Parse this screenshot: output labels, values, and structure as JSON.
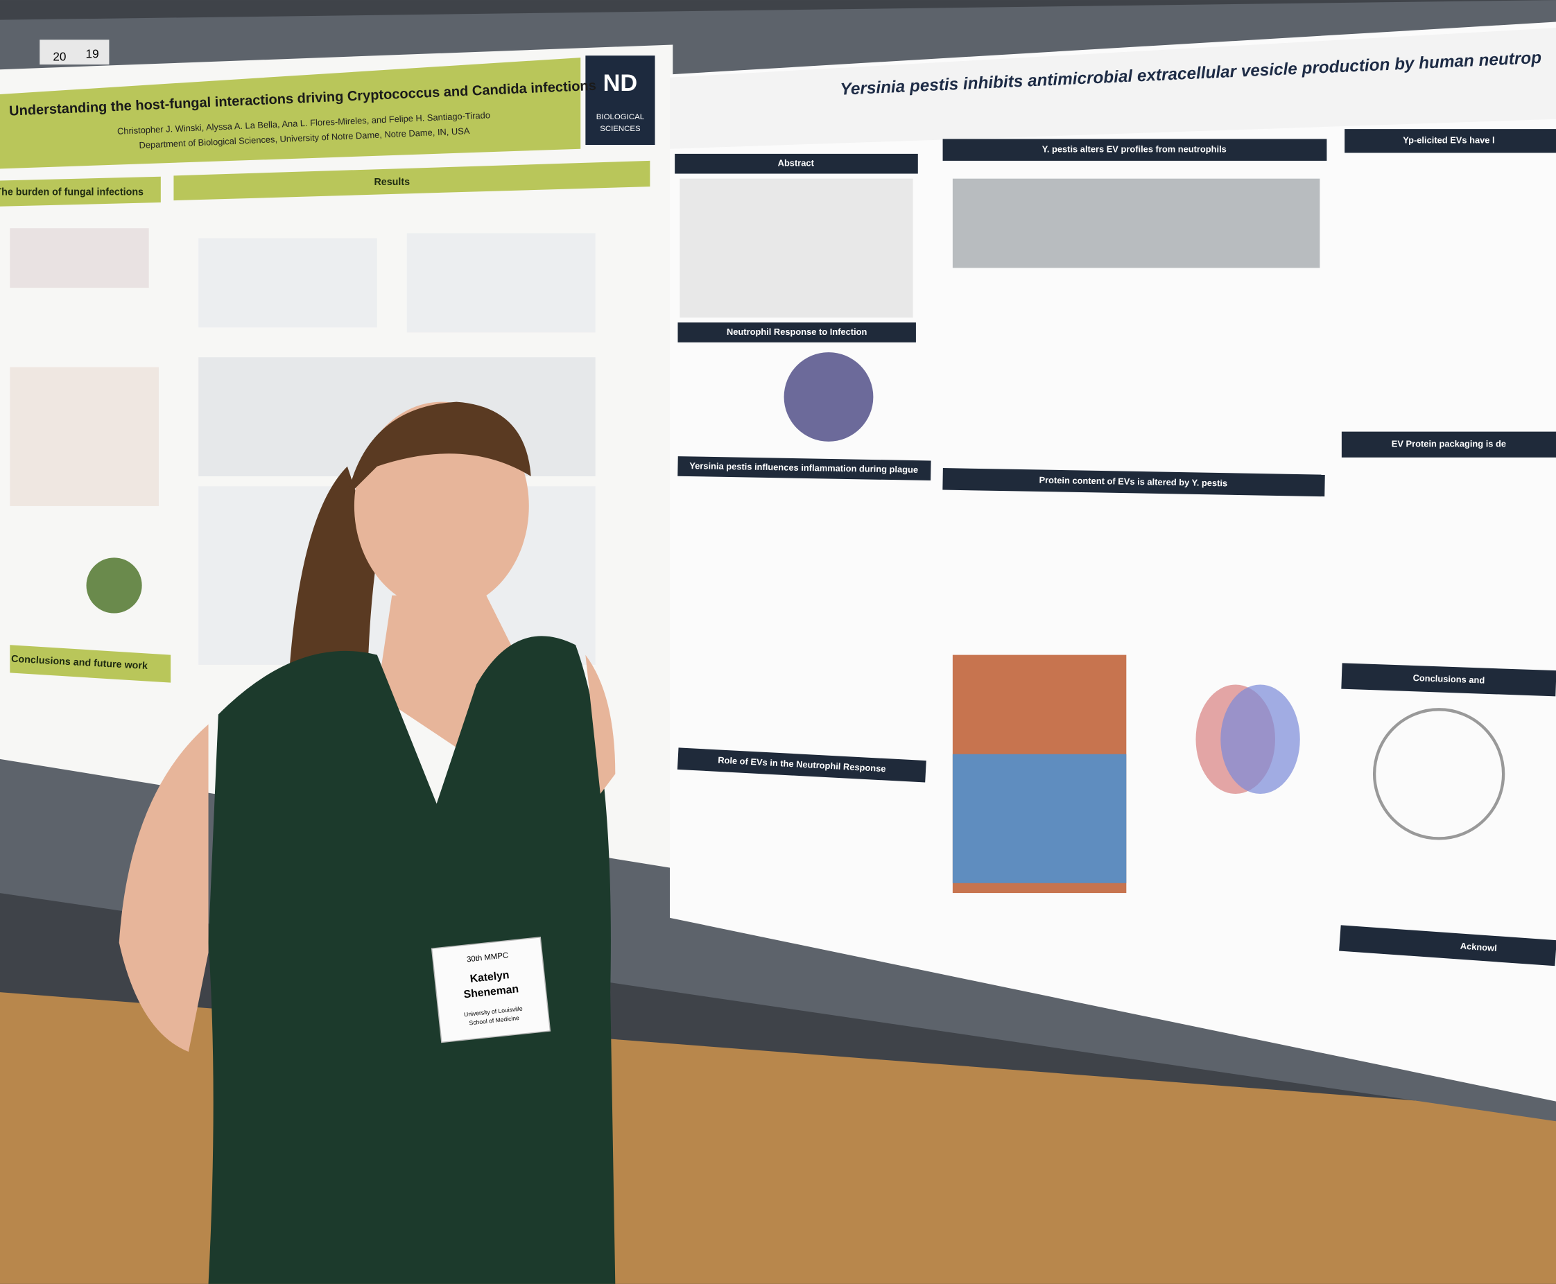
{
  "board_numbers": [
    "20",
    "19"
  ],
  "left_poster": {
    "title": "Understanding the host-fungal interactions driving Cryptococcus and Candida infections",
    "authors": "Christopher J. Winski, Alyssa A. La Bella, Ana L. Flores-Mireles, and Felipe H. Santiago-Tirado",
    "affiliation": "Department of Biological Sciences, University of Notre Dame, Notre Dame, IN, USA",
    "logo": [
      "ND",
      "BIOLOGICAL",
      "SCIENCES"
    ],
    "sections": [
      "The burden of fungal infections",
      "Results",
      "Conclusions and future work"
    ]
  },
  "right_poster": {
    "title": "Yersinia pestis inhibits antimicrobial extracellular vesicle production by human neutrop",
    "sections": [
      "Abstract",
      "Y. pestis alters EV profiles from neutrophils",
      "Neutrophil Response to Infection",
      "Yersinia pestis influences inflammation during plague",
      "Role of EVs in the Neutrophil Response",
      "Protein content of EVs is altered by Y. pestis",
      "Yp-elicited EVs have l",
      "EV Protein packaging is de",
      "Conclusions and",
      "Acknowl"
    ]
  },
  "badge": {
    "event": "30th MMPC",
    "first_name": "Katelyn",
    "last_name": "Sheneman",
    "affiliation": [
      "University of Louisville",
      "School of Medicine"
    ]
  }
}
